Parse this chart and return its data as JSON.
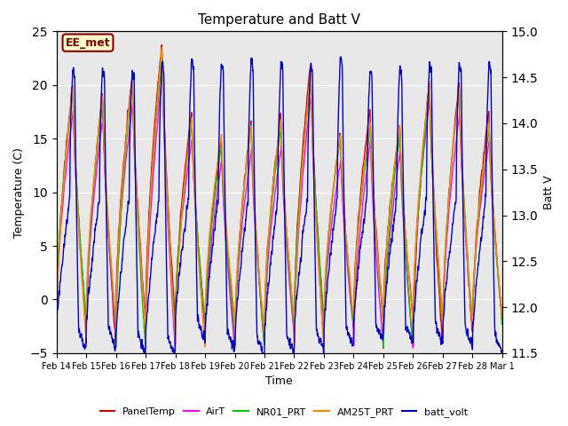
{
  "title": "Temperature and Batt V",
  "xlabel": "Time",
  "ylabel_left": "Temperature (C)",
  "ylabel_right": "Batt V",
  "ylim_left": [
    -5,
    25
  ],
  "ylim_right": [
    11.5,
    15.0
  ],
  "annotation_text": "EE_met",
  "background_color": "#e8e8e8",
  "fig_background": "#ffffff",
  "series": {
    "PanelTemp": {
      "color": "#dd0000",
      "lw": 1.0
    },
    "AirT": {
      "color": "#ff00ff",
      "lw": 1.0
    },
    "NR01_PRT": {
      "color": "#00cc00",
      "lw": 1.0
    },
    "AM25T_PRT": {
      "color": "#ff8800",
      "lw": 1.0
    },
    "batt_volt": {
      "color": "#0000cc",
      "lw": 1.0
    }
  },
  "xtick_labels": [
    "Feb 14",
    "Feb 15",
    "Feb 16",
    "Feb 17",
    "Feb 18",
    "Feb 19",
    "Feb 20",
    "Feb 21",
    "Feb 22",
    "Feb 23",
    "Feb 24",
    "Feb 25",
    "Feb 26",
    "Feb 27",
    "Feb 28",
    "Mar 1"
  ],
  "yticks_left": [
    -5,
    0,
    5,
    10,
    15,
    20,
    25
  ],
  "yticks_right": [
    11.5,
    12.0,
    12.5,
    13.0,
    13.5,
    14.0,
    14.5,
    15.0
  ],
  "legend_items": [
    "PanelTemp",
    "AirT",
    "NR01_PRT",
    "AM25T_PRT",
    "batt_volt"
  ],
  "legend_colors": [
    "#dd0000",
    "#ff00ff",
    "#00cc00",
    "#ff8800",
    "#0000cc"
  ],
  "n_days": 15,
  "pts_per_day": 144
}
